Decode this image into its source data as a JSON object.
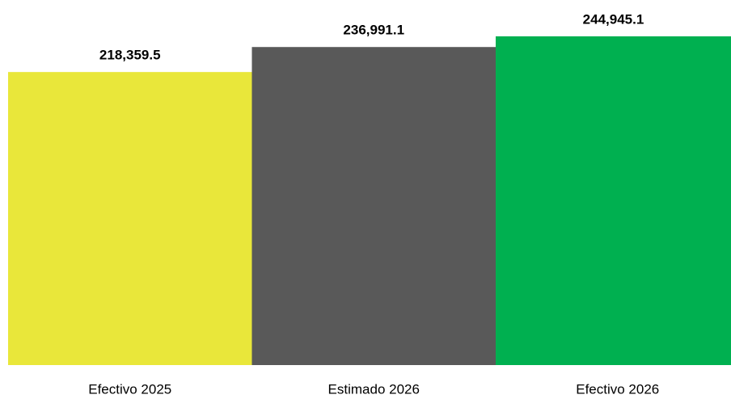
{
  "chart_data": {
    "type": "bar",
    "categories": [
      "Efectivo 2025",
      "Estimado 2026",
      "Efectivo 2026"
    ],
    "values": [
      218359.5,
      236991.1,
      244945.1
    ],
    "value_labels": [
      "218,359.5",
      "236,991.1",
      "244,945.1"
    ],
    "colors": [
      "#e9e73a",
      "#595959",
      "#00b050"
    ]
  }
}
